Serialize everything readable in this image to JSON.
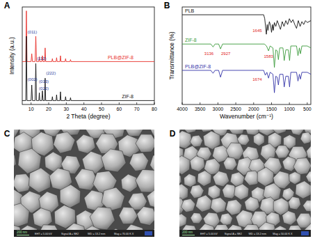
{
  "chart_data": [
    {
      "type": "line",
      "title": "A",
      "x_label": "2 Theta (degree)",
      "y_label": "Intensity (a.u.)",
      "xlim": [
        5,
        80
      ],
      "xticks": [
        10,
        20,
        30,
        40,
        50,
        60,
        70,
        80
      ],
      "ylim": [
        0,
        100
      ],
      "tick_labels": "x",
      "series": [
        {
          "name": "PLB@ZIF-8",
          "color": "#e8302a",
          "x": [
            5,
            7.0,
            7.35,
            7.7,
            10.0,
            10.4,
            10.8,
            12.3,
            12.7,
            13.1,
            14.4,
            14.7,
            15.0,
            16.1,
            16.45,
            16.8,
            17.7,
            18.0,
            18.3,
            21.8,
            22.1,
            22.4,
            24.2,
            24.5,
            24.8,
            26.4,
            26.7,
            27.0,
            29.3,
            29.6,
            29.9,
            32.1,
            32.4,
            32.7,
            80
          ],
          "values": [
            44,
            44,
            96,
            44,
            44,
            52,
            44,
            44,
            70,
            44,
            44,
            49,
            44,
            44,
            50,
            44,
            44,
            58,
            44,
            44,
            47,
            44,
            44,
            48,
            44,
            44,
            50,
            44,
            44,
            47,
            44,
            44,
            46,
            44,
            44
          ]
        },
        {
          "name": "ZIF-8",
          "color": "#111111",
          "x": [
            5,
            7.0,
            7.35,
            7.7,
            10.0,
            10.4,
            10.8,
            12.3,
            12.7,
            13.1,
            14.4,
            14.7,
            15.0,
            16.1,
            16.45,
            16.8,
            17.7,
            18.0,
            18.3,
            21.8,
            22.1,
            22.4,
            24.2,
            24.5,
            24.8,
            26.4,
            26.7,
            27.0,
            29.3,
            29.6,
            29.9,
            32.1,
            32.4,
            32.7,
            80
          ],
          "values": [
            4,
            4,
            70,
            4,
            4,
            20,
            4,
            4,
            42,
            4,
            4,
            12,
            4,
            4,
            14,
            4,
            4,
            27,
            4,
            4,
            8,
            4,
            4,
            10,
            4,
            4,
            13,
            4,
            4,
            8,
            4,
            4,
            7,
            4,
            4
          ]
        }
      ],
      "annotations": [
        {
          "text": "(011)",
          "x": 8.0,
          "y": 73,
          "color": "#2a3fa0"
        },
        {
          "text": "(112)",
          "x": 13.3,
          "y": 46,
          "color": "#2a3fa0"
        },
        {
          "text": "(002)",
          "x": 8.0,
          "y": 24,
          "color": "#2a3fa0"
        },
        {
          "text": "(222)",
          "x": 18.5,
          "y": 31,
          "color": "#2a3fa0"
        },
        {
          "text": "(013)",
          "x": 14.5,
          "y": 22,
          "color": "#2a3fa0"
        },
        {
          "text": "(022)",
          "x": 14.5,
          "y": 15,
          "color": "#2a3fa0"
        }
      ]
    },
    {
      "type": "line",
      "title": "B",
      "x_label": "Wavenumber (cm⁻¹)",
      "y_label": "Transmittance (%)",
      "xlim": [
        4000,
        400
      ],
      "xticks": [
        4000,
        3500,
        3000,
        2500,
        2000,
        1500,
        1000,
        500
      ],
      "ylim": [
        0,
        100
      ],
      "tick_labels": "x",
      "series": [
        {
          "name": "PLB",
          "color": "#111111",
          "x": [
            4000,
            1720,
            1690,
            1645,
            1620,
            1600,
            1560,
            1520,
            1500,
            1470,
            1450,
            1420,
            1380,
            1340,
            1300,
            1250,
            1200,
            1150,
            1100,
            1050,
            1000,
            950,
            900,
            850,
            800,
            750,
            700,
            650,
            600,
            550,
            500,
            400
          ],
          "values": [
            92,
            92,
            88,
            72,
            82,
            76,
            85,
            80,
            74,
            82,
            76,
            84,
            80,
            86,
            82,
            77,
            85,
            80,
            86,
            82,
            88,
            84,
            87,
            82,
            78,
            86,
            80,
            85,
            82,
            86,
            84,
            86
          ]
        },
        {
          "name": "ZIF-8",
          "color": "#3a9a3a",
          "x": [
            4000,
            3200,
            3136,
            3080,
            2980,
            2927,
            2870,
            1700,
            1640,
            1583,
            1540,
            1460,
            1420,
            1380,
            1340,
            1308,
            1270,
            1180,
            1145,
            1100,
            1030,
            995,
            960,
            800,
            760,
            720,
            690,
            650,
            500,
            400
          ],
          "values": [
            62,
            62,
            59,
            62,
            62,
            57,
            62,
            62,
            60,
            55,
            60,
            58,
            38,
            56,
            55,
            46,
            58,
            58,
            45,
            56,
            56,
            45,
            60,
            60,
            50,
            58,
            52,
            60,
            60,
            58
          ]
        },
        {
          "name": "PLB@ZIF-8",
          "color": "#3434a8",
          "x": [
            4000,
            3200,
            3136,
            3080,
            2980,
            2927,
            2870,
            1720,
            1674,
            1630,
            1583,
            1540,
            1460,
            1420,
            1380,
            1340,
            1308,
            1270,
            1180,
            1145,
            1100,
            1030,
            995,
            960,
            800,
            760,
            720,
            690,
            650,
            500,
            400
          ],
          "values": [
            35,
            35,
            32,
            35,
            35,
            28,
            35,
            35,
            30,
            33,
            27,
            33,
            31,
            12,
            29,
            28,
            20,
            31,
            31,
            18,
            29,
            29,
            18,
            33,
            33,
            24,
            31,
            26,
            33,
            33,
            31
          ]
        }
      ],
      "annotations": [
        {
          "text": "1645",
          "x": 1900,
          "y": 74,
          "color": "#e02020"
        },
        {
          "text": "3136",
          "x": 3250,
          "y": 51,
          "color": "#e02020"
        },
        {
          "text": "2927",
          "x": 2780,
          "y": 51,
          "color": "#e02020"
        },
        {
          "text": "1583",
          "x": 1583,
          "y": 48,
          "color": "#e02020"
        },
        {
          "text": "1674",
          "x": 1900,
          "y": 24,
          "color": "#e02020"
        }
      ]
    }
  ],
  "images": [
    {
      "title": "C",
      "scale_bar": "200 nm",
      "info": [
        "EHT = 5.00 kV",
        "Signal A = SE2",
        "WD = 13.2 mm",
        "Mag = 70.00 K X"
      ]
    },
    {
      "title": "D",
      "scale_bar": "200 nm",
      "info": [
        "EHT = 5.00 kV",
        "Signal A = SE2",
        "WD = 13.2 mm",
        "Mag = 50.00 K X"
      ]
    }
  ]
}
